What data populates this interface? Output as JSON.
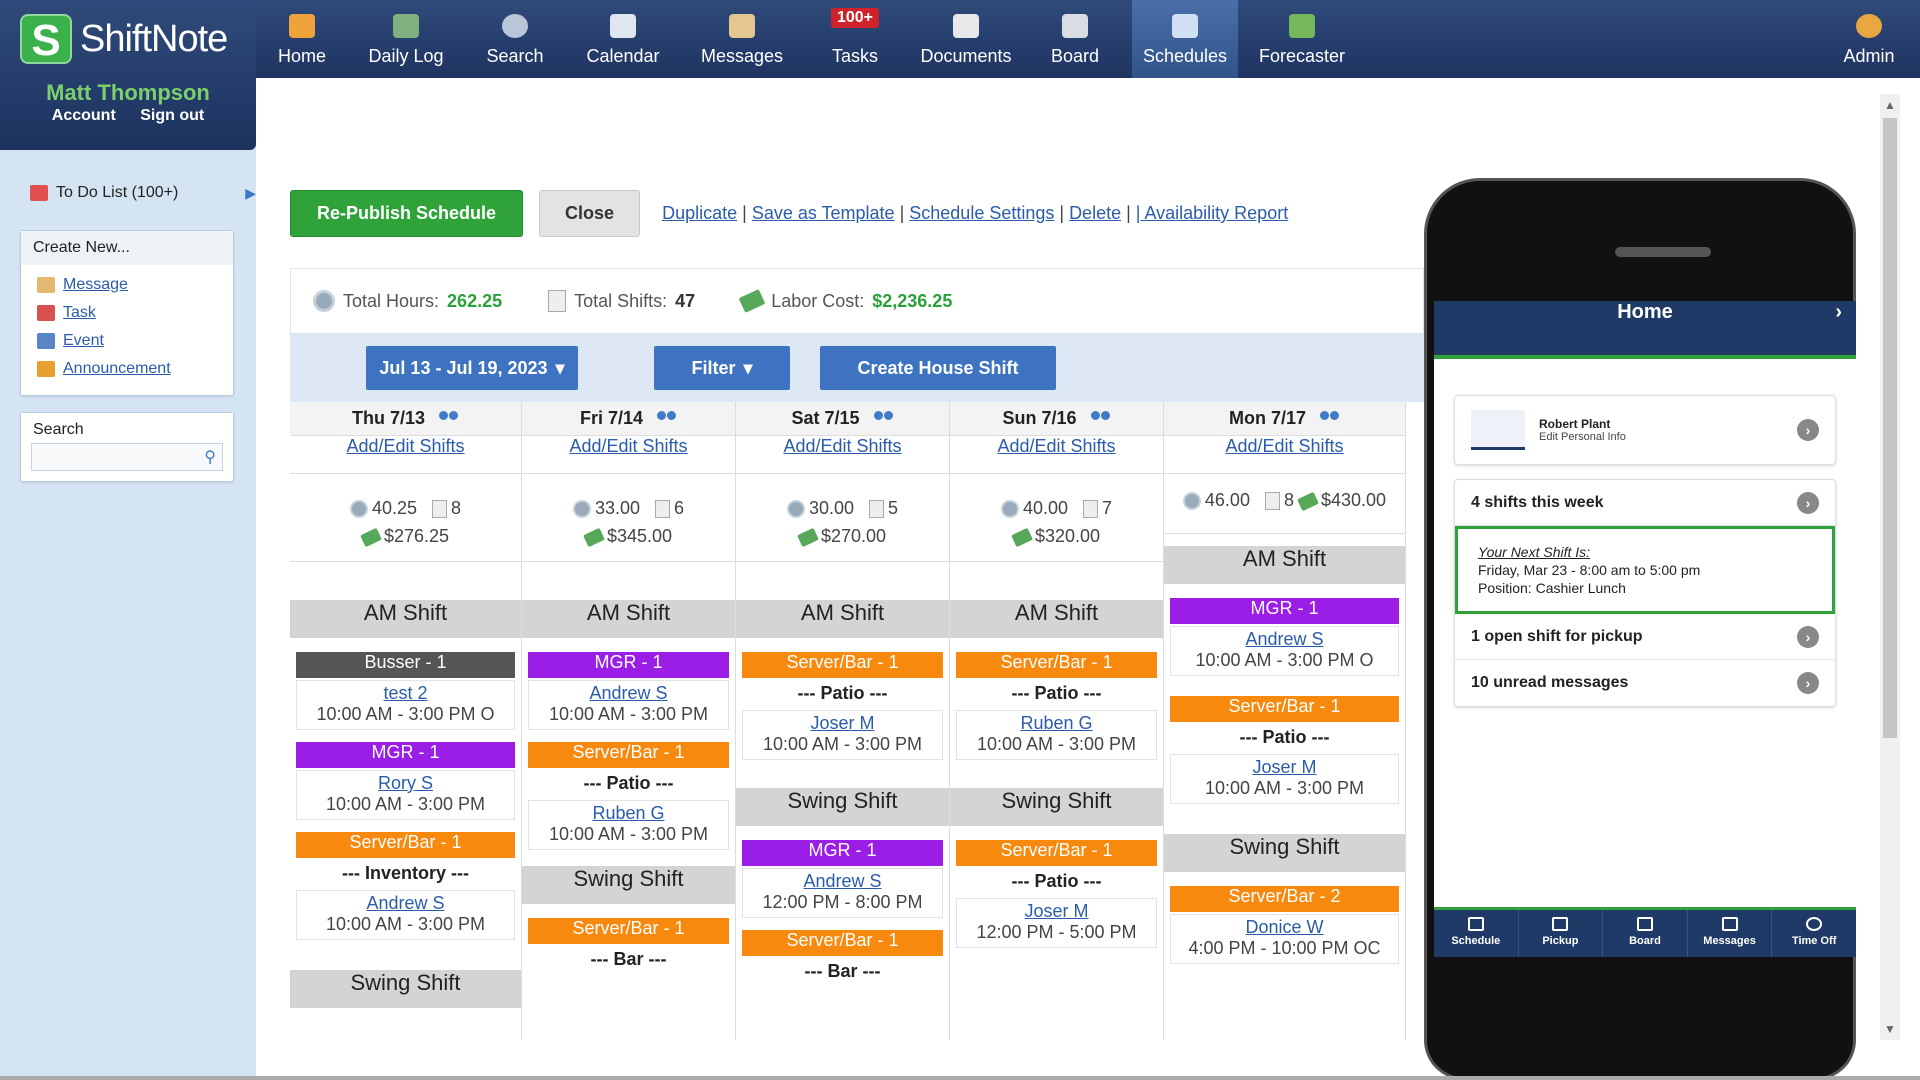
{
  "app": {
    "logo_text": "ShiftNote",
    "logo_letter": "S"
  },
  "user": {
    "name": "Matt Thompson",
    "account": "Account",
    "signout": "Sign out"
  },
  "nav": {
    "home": "Home",
    "daily_log": "Daily Log",
    "search": "Search",
    "calendar": "Calendar",
    "messages": "Messages",
    "tasks": "Tasks",
    "tasks_badge": "100+",
    "documents": "Documents",
    "board": "Board",
    "schedules": "Schedules",
    "forecaster": "Forecaster",
    "admin": "Admin"
  },
  "sidebar": {
    "todo": "To Do List (100+)",
    "create_title": "Create New...",
    "create": {
      "message": "Message",
      "task": "Task",
      "event": "Event",
      "announcement": "Announcement"
    },
    "search_title": "Search"
  },
  "actions": {
    "republish": "Re-Publish Schedule",
    "close": "Close",
    "duplicate": "Duplicate",
    "save_template": "Save as Template",
    "settings": "Schedule Settings",
    "delete": "Delete",
    "availability": "| Availability Report"
  },
  "stats": {
    "hours_label": "Total Hours:",
    "hours": "262.25",
    "shifts_label": "Total Shifts:",
    "shifts": "47",
    "labor_label": "Labor Cost:",
    "labor": "$2,236.25"
  },
  "toolbar": {
    "range": "Jul 13 - Jul 19, 2023",
    "filter": "Filter",
    "create_house": "Create House Shift"
  },
  "labels": {
    "add_edit": "Add/Edit Shifts",
    "am": "AM Shift",
    "swing": "Swing Shift",
    "patio": "--- Patio ---",
    "inventory": "--- Inventory ---",
    "bar": "--- Bar ---"
  },
  "days": [
    {
      "day": "Thu 7/13",
      "hours": "40.25",
      "shifts": "8",
      "cost": "$276.25"
    },
    {
      "day": "Fri 7/14",
      "hours": "33.00",
      "shifts": "6",
      "cost": "$345.00"
    },
    {
      "day": "Sat 7/15",
      "hours": "30.00",
      "shifts": "5",
      "cost": "$270.00"
    },
    {
      "day": "Sun 7/16",
      "hours": "40.00",
      "shifts": "7",
      "cost": "$320.00"
    },
    {
      "day": "Mon 7/17",
      "hours": "46.00",
      "shifts": "8",
      "cost": "$430.00"
    }
  ],
  "roles": {
    "busser1": "Busser - 1",
    "mgr1": "MGR - 1",
    "server1": "Server/Bar - 1",
    "server2": "Server/Bar - 2"
  },
  "people": {
    "thu_busser": {
      "name": "test 2",
      "time": "10:00 AM - 3:00 PM O"
    },
    "thu_mgr": {
      "name": "Rory S",
      "time": "10:00 AM - 3:00 PM"
    },
    "thu_server": {
      "name": "Andrew S",
      "time": "10:00 AM - 3:00 PM"
    },
    "fri_mgr": {
      "name": "Andrew S",
      "time": "10:00 AM - 3:00 PM"
    },
    "fri_server": {
      "name": "Ruben G",
      "time": "10:00 AM - 3:00 PM"
    },
    "sat_server": {
      "name": "Joser M",
      "time": "10:00 AM - 3:00 PM"
    },
    "sat_mgr": {
      "name": "Andrew S",
      "time": "12:00 PM - 8:00 PM"
    },
    "sun_server": {
      "name": "Ruben G",
      "time": "10:00 AM - 3:00 PM"
    },
    "sun_server2": {
      "name": "Joser M",
      "time": "12:00 PM - 5:00 PM"
    },
    "mon_mgr": {
      "name": "Andrew S",
      "time": "10:00 AM - 3:00 PM O"
    },
    "mon_server": {
      "name": "Joser M",
      "time": "10:00 AM - 3:00 PM"
    },
    "mon_server2": {
      "name": "Donice W",
      "time": "4:00 PM - 10:00 PM OC"
    }
  },
  "phone": {
    "title": "Home",
    "profile_name": "Robert Plant",
    "profile_sub": "Edit Personal Info",
    "shifts_week": "4 shifts this week",
    "next_label": "Your Next Shift Is:",
    "next_time": "Friday, Mar 23 - 8:00 am to 5:00 pm",
    "next_pos": "Position: Cashier Lunch",
    "open_shift": "1 open shift for pickup",
    "unread": "10 unread messages",
    "tabs": {
      "schedule": "Schedule",
      "pickup": "Pickup",
      "board": "Board",
      "messages": "Messages",
      "timeoff": "Time Off"
    }
  },
  "colors": {
    "nav": "#1f3461",
    "green": "#2fa33a",
    "mgr": "#9b1ee6",
    "server": "#f7890f",
    "busser": "#555555",
    "button_blue": "#3d73c0"
  }
}
